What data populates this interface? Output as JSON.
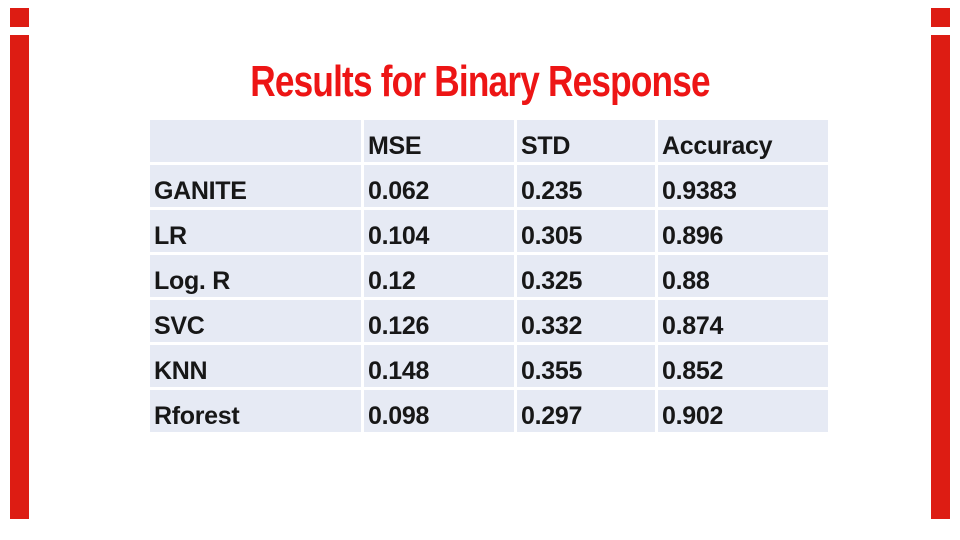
{
  "slide": {
    "title": "Results for Binary Response",
    "colors": {
      "title_red": "#ed1515",
      "border_red": "#dd1c13",
      "table_cell_bg": "#e6eaf4",
      "table_text": "#171717"
    }
  },
  "table": {
    "headers": [
      "",
      "MSE",
      "STD",
      "Accuracy"
    ],
    "rows": [
      [
        "GANITE",
        "0.062",
        "0.235",
        "0.9383"
      ],
      [
        "LR",
        "0.104",
        "0.305",
        "0.896"
      ],
      [
        "Log. R",
        "0.12",
        "0.325",
        "0.88"
      ],
      [
        "SVC",
        "0.126",
        "0.332",
        "0.874"
      ],
      [
        "KNN",
        "0.148",
        "0.355",
        "0.852"
      ],
      [
        "Rforest",
        "0.098",
        "0.297",
        "0.902"
      ]
    ]
  },
  "chart_data": {
    "type": "table",
    "title": "Results for Binary Response",
    "columns": [
      "",
      "MSE",
      "STD",
      "Accuracy"
    ],
    "rows": [
      [
        "GANITE",
        0.062,
        0.235,
        0.9383
      ],
      [
        "LR",
        0.104,
        0.305,
        0.896
      ],
      [
        "Log. R",
        0.12,
        0.325,
        0.88
      ],
      [
        "SVC",
        0.126,
        0.332,
        0.874
      ],
      [
        "KNN",
        0.148,
        0.355,
        0.852
      ],
      [
        "Rforest",
        0.098,
        0.297,
        0.902
      ]
    ]
  }
}
